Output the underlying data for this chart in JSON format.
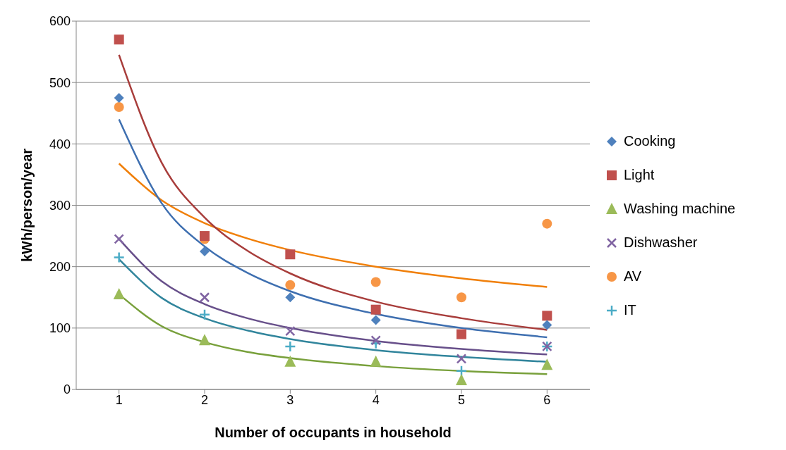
{
  "chart_data": {
    "type": "scatter",
    "xlabel": "Number of occupants in household",
    "ylabel": "kWh/person/year",
    "xlim": [
      0.5,
      6.5
    ],
    "xticks": [
      1,
      2,
      3,
      4,
      5,
      6
    ],
    "ylim": [
      0,
      600
    ],
    "yticks": [
      0,
      100,
      200,
      300,
      400,
      500,
      600
    ],
    "grid": "y",
    "legend": "right",
    "x": [
      1,
      2,
      3,
      4,
      5,
      6
    ],
    "series": [
      {
        "name": "Cooking",
        "color": "#4f81bd",
        "marker": "diamond",
        "values": [
          475,
          225,
          150,
          113,
          null,
          105
        ]
      },
      {
        "name": "Light",
        "color": "#c0504d",
        "marker": "square",
        "values": [
          570,
          250,
          220,
          130,
          90,
          120
        ]
      },
      {
        "name": "Washing machine",
        "color": "#9bbb59",
        "marker": "triangle",
        "values": [
          155,
          80,
          45,
          45,
          15,
          40
        ]
      },
      {
        "name": "Dishwasher",
        "color": "#8064a2",
        "marker": "cross",
        "values": [
          245,
          150,
          95,
          80,
          50,
          70
        ]
      },
      {
        "name": "AV",
        "color": "#f79646",
        "marker": "circle",
        "values": [
          460,
          245,
          170,
          175,
          150,
          270
        ]
      },
      {
        "name": "IT",
        "color": "#4bacc6",
        "marker": "plus",
        "values": [
          215,
          122,
          70,
          75,
          30,
          70
        ]
      },
      {
        "type": "line",
        "color": "#3e6fb0",
        "x": [
          1,
          1.5,
          2,
          2.5,
          3,
          4,
          5,
          6
        ],
        "values": [
          440,
          303,
          233,
          190,
          160,
          123,
          100,
          85
        ]
      },
      {
        "type": "line",
        "color": "#a83d3b",
        "x": [
          1,
          1.5,
          2,
          2.5,
          3,
          4,
          5,
          6
        ],
        "values": [
          545,
          369,
          280,
          226,
          189,
          143,
          116,
          97
        ]
      },
      {
        "type": "line",
        "color": "#78a03b",
        "x": [
          1,
          1.5,
          2,
          2.5,
          3,
          4,
          5,
          6
        ],
        "values": [
          155,
          103,
          77,
          61,
          51,
          38,
          30,
          25
        ]
      },
      {
        "type": "line",
        "color": "#674f8a",
        "x": [
          1,
          1.5,
          2,
          2.5,
          3,
          4,
          5,
          6
        ],
        "values": [
          245,
          176,
          139,
          116,
          100,
          79,
          66,
          57
        ]
      },
      {
        "type": "line",
        "color": "#f07f09",
        "x": [
          1,
          1.5,
          2,
          2.5,
          3,
          4,
          5,
          6
        ],
        "values": [
          368,
          308,
          271,
          246,
          227,
          200,
          181,
          167
        ]
      },
      {
        "type": "line",
        "color": "#31859c",
        "x": [
          1,
          1.5,
          2,
          2.5,
          3,
          4,
          5,
          6
        ],
        "values": [
          212,
          149,
          116,
          96,
          82,
          64,
          53,
          45
        ]
      }
    ]
  }
}
